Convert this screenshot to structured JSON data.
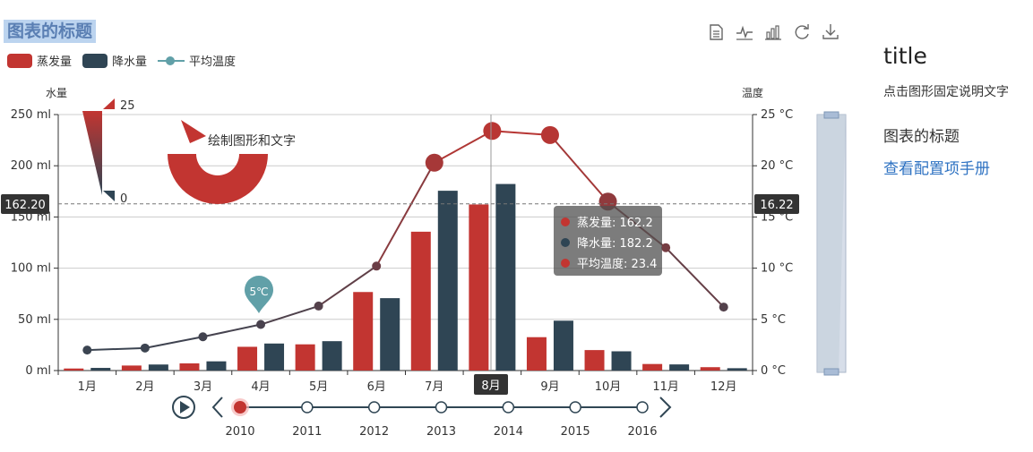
{
  "title": "图表的标题",
  "legend": [
    {
      "name": "蒸发量",
      "color": "#c23531",
      "kind": "bar"
    },
    {
      "name": "降水量",
      "color": "#2f4554",
      "kind": "bar"
    },
    {
      "name": "平均温度",
      "color": "#61a0a8",
      "kind": "line"
    }
  ],
  "toolbox": [
    "data-view-icon",
    "line-chart-icon",
    "bar-chart-icon",
    "restore-icon",
    "download-icon"
  ],
  "side": {
    "title": "title",
    "desc": "点击图形固定说明文字",
    "subtitle": "图表的标题",
    "link": "查看配置项手册"
  },
  "graphic": {
    "text": "绘制图形和文字"
  },
  "visual_map": {
    "max": "25",
    "min": "0"
  },
  "tooltip": {
    "rows": [
      {
        "text": "蒸发量: 162.2",
        "color": "#c23531"
      },
      {
        "text": "降水量: 182.2",
        "color": "#2f4554"
      },
      {
        "text": "平均温度: 23.4",
        "color": "#c23531"
      }
    ]
  },
  "axis_pointer": {
    "left_label": "162.20",
    "right_label": "16.22",
    "x_label": "8月"
  },
  "timeline": {
    "years": [
      "2010",
      "2011",
      "2012",
      "2013",
      "2014",
      "2015",
      "2016"
    ],
    "current": 0
  },
  "chart_data": {
    "type": "bar",
    "categories": [
      "1月",
      "2月",
      "3月",
      "4月",
      "5月",
      "6月",
      "7月",
      "8月",
      "9月",
      "10月",
      "11月",
      "12月"
    ],
    "series": [
      {
        "name": "蒸发量",
        "type": "bar",
        "values": [
          2.0,
          4.9,
          7.0,
          23.2,
          25.6,
          76.7,
          135.6,
          162.2,
          32.6,
          20.0,
          6.4,
          3.3
        ]
      },
      {
        "name": "降水量",
        "type": "bar",
        "values": [
          2.6,
          5.9,
          9.0,
          26.4,
          28.7,
          70.7,
          175.6,
          182.2,
          48.7,
          18.8,
          6.0,
          2.3
        ]
      },
      {
        "name": "平均温度",
        "type": "line",
        "values": [
          2.0,
          2.2,
          3.3,
          4.5,
          6.3,
          10.2,
          20.3,
          23.4,
          23.0,
          16.5,
          12.0,
          6.2
        ]
      }
    ],
    "y_left": {
      "label": "水量",
      "min": 0,
      "max": 250,
      "ticks": [
        "0 ml",
        "50 ml",
        "100 ml",
        "150 ml",
        "200 ml",
        "250 ml"
      ]
    },
    "y_right": {
      "label": "温度",
      "min": 0,
      "max": 25,
      "ticks": [
        "0 °C",
        "5 °C",
        "10 °C",
        "15 °C",
        "20 °C",
        "25 °C"
      ]
    },
    "mark_point": {
      "label": "5℃",
      "category_index": 3
    },
    "grid": true
  }
}
